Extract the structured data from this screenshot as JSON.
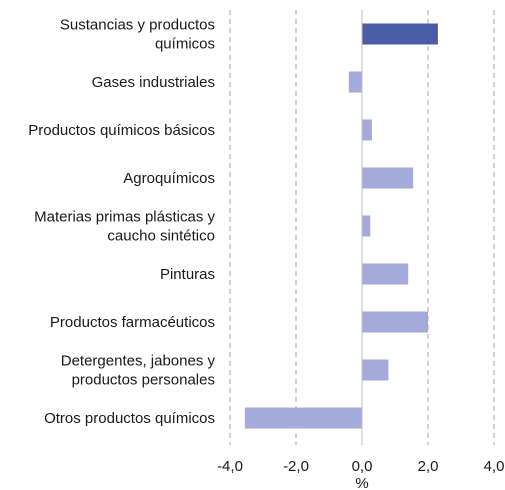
{
  "chart_data": {
    "type": "bar",
    "orientation": "horizontal",
    "title": "",
    "xlabel": "%",
    "ylabel": "",
    "xlim": [
      -4.0,
      4.0
    ],
    "xticks": [
      -4.0,
      -2.0,
      0.0,
      2.0,
      4.0
    ],
    "xtick_labels": [
      "-4,0",
      "-2,0",
      "0,0",
      "2,0",
      "4,0"
    ],
    "grid": "vertical-dashed",
    "legend": "none",
    "categories": [
      [
        "Sustancias y productos",
        "químicos"
      ],
      [
        "Gases industriales"
      ],
      [
        "Productos químicos básicos"
      ],
      [
        "Agroquímicos"
      ],
      [
        "Materias primas plásticas y",
        "caucho sintético"
      ],
      [
        "Pinturas"
      ],
      [
        "Productos farmacéuticos"
      ],
      [
        "Detergentes, jabones y",
        "productos personales"
      ],
      [
        "Otros productos químicos"
      ]
    ],
    "values": [
      2.3,
      -0.4,
      0.3,
      1.55,
      0.25,
      1.4,
      2.0,
      0.8,
      -3.55
    ],
    "highlight_index": 0,
    "colors": {
      "highlight": "#4a5ba8",
      "bar": "#a4abdb",
      "grid": "#a6a6a6",
      "axis": "#bfbfbf",
      "text": "#1a1a1a"
    }
  }
}
